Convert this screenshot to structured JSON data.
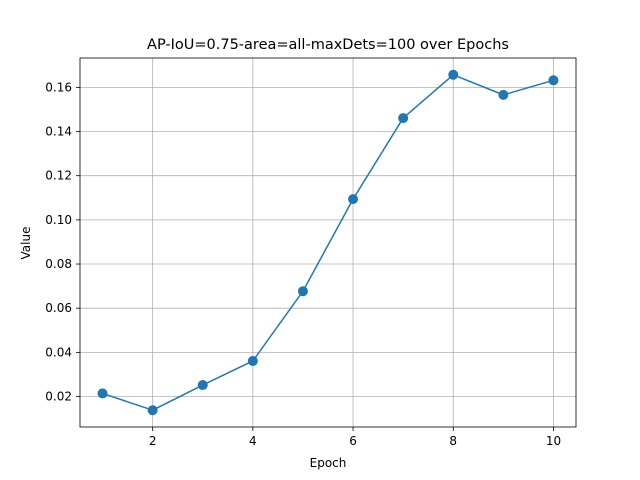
{
  "chart_data": {
    "type": "line",
    "title": "AP-IoU=0.75-area=all-maxDets=100 over Epochs",
    "xlabel": "Epoch",
    "ylabel": "Value",
    "x": [
      1,
      2,
      3,
      4,
      5,
      6,
      7,
      8,
      9,
      10
    ],
    "series": [
      {
        "values": [
          0.0214,
          0.0138,
          0.0252,
          0.0361,
          0.0677,
          0.1094,
          0.1461,
          0.1657,
          0.1566,
          0.1632
        ]
      }
    ],
    "xlim": [
      0.55,
      10.45
    ],
    "ylim": [
      0.0062,
      0.1733
    ],
    "xticks": [
      2,
      4,
      6,
      8,
      10
    ],
    "xtick_labels": [
      "2",
      "4",
      "6",
      "8",
      "10"
    ],
    "yticks": [
      0.02,
      0.04,
      0.06,
      0.08,
      0.1,
      0.12,
      0.14,
      0.16
    ],
    "ytick_labels": [
      "0.02",
      "0.04",
      "0.06",
      "0.08",
      "0.10",
      "0.12",
      "0.14",
      "0.16"
    ],
    "grid": true,
    "legend": "none",
    "colors": {
      "line": "#1f77b4",
      "grid": "#b0b0b0",
      "axes": "#000000"
    }
  }
}
